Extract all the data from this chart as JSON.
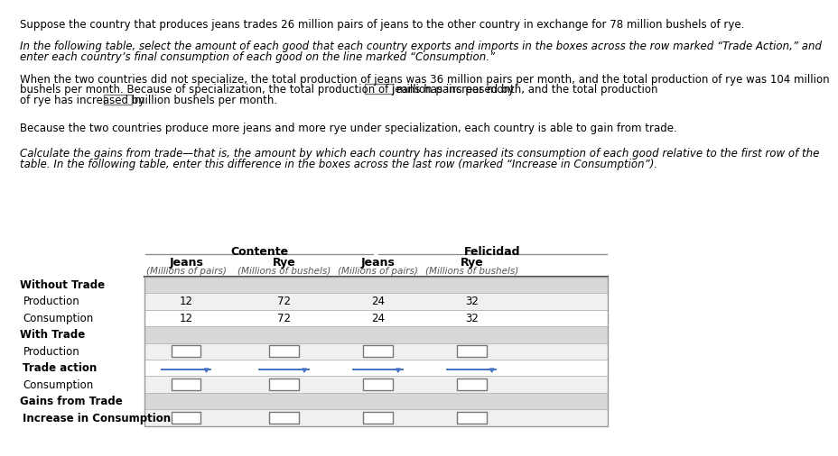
{
  "title_line1": "Suppose the country that produces jeans trades 26 million pairs of jeans to the other country in exchange for 78 million bushels of rye.",
  "para1_line1": "In the following table, select the amount of each good that each country exports and imports in the boxes across the row marked “Trade Action,” and",
  "para1_line2": "enter each country’s final consumption of each good on the line marked “Consumption.”",
  "para2_line1": "When the two countries did not specialize, the total production of jeans was 36 million pairs per month, and the total production of rye was 104 million",
  "para2_line2_pre": "bushels per month. Because of specialization, the total production of jeans has increased by",
  "para2_line2_post": "million pairs per month, and the total production",
  "para2_line3_pre": "of rye has increased by",
  "para2_line3_post": "million bushels per month.",
  "para3": "Because the two countries produce more jeans and more rye under specialization, each country is able to gain from trade.",
  "para4_line1": "Calculate the gains from trade—that is, the amount by which each country has increased its consumption of each good relative to the first row of the",
  "para4_line2": "table. In the following table, enter this difference in the boxes across the last row (marked “Increase in Consumption”).",
  "col_header1": "Contente",
  "col_header2": "Felicidad",
  "sub_col1": "Jeans",
  "sub_col2": "Rye",
  "sub_col3": "Jeans",
  "sub_col4": "Rye",
  "sub_unit1": "(Millions of pairs)",
  "sub_unit2": "(Millions of bushels)",
  "sub_unit3": "(Millions of pairs)",
  "sub_unit4": "(Millions of bushels)",
  "data_prod_no_trade": [
    "12",
    "72",
    "24",
    "32"
  ],
  "data_cons_no_trade": [
    "12",
    "72",
    "24",
    "32"
  ],
  "bg_color": "#ffffff",
  "section_bg": "#d8d8d8",
  "row_bg_light": "#f0f0f0",
  "row_bg_white": "#ffffff",
  "text_color": "#000000",
  "gray_text": "#555555",
  "blue_color": "#4472C4",
  "box_border": "#777777",
  "table_border": "#999999",
  "header_line_color": "#333333"
}
